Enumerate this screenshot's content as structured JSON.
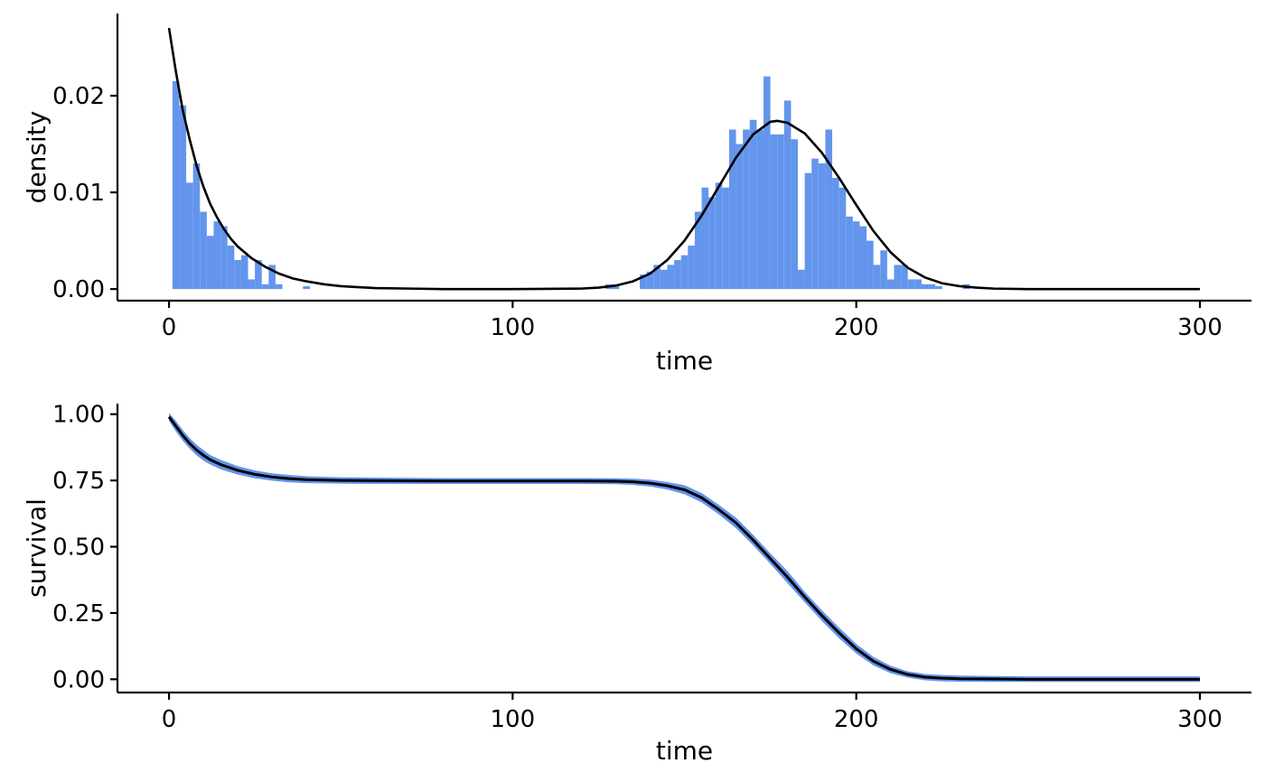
{
  "chart_data": [
    {
      "type": "histogram-with-density-line",
      "xlabel": "time",
      "ylabel": "density",
      "xlim": [
        -15,
        315
      ],
      "ylim": [
        -0.0012,
        0.0285
      ],
      "xticks": [
        0,
        100,
        200,
        300
      ],
      "xtick_labels": [
        "0",
        "100",
        "200",
        "300"
      ],
      "yticks": [
        0,
        0.01,
        0.02
      ],
      "ytick_labels": [
        "0.00",
        "0.01",
        "0.02"
      ],
      "bar_color": "#6495ED",
      "line_color": "#000000",
      "bin_width": 2,
      "bins_start": [
        1,
        3,
        5,
        7,
        9,
        11,
        13,
        15,
        17,
        19,
        21,
        23,
        25,
        27,
        29,
        31,
        33,
        39,
        127,
        129,
        137,
        139,
        141,
        143,
        145,
        147,
        149,
        151,
        153,
        155,
        157,
        159,
        161,
        163,
        165,
        167,
        169,
        171,
        173,
        175,
        177,
        179,
        181,
        183,
        185,
        187,
        189,
        191,
        193,
        195,
        197,
        199,
        201,
        203,
        205,
        207,
        209,
        211,
        213,
        215,
        217,
        219,
        221,
        223,
        231
      ],
      "densities": [
        0.0215,
        0.019,
        0.011,
        0.013,
        0.008,
        0.0055,
        0.007,
        0.0065,
        0.0045,
        0.003,
        0.0035,
        0.001,
        0.003,
        0.0005,
        0.0025,
        0.0005,
        0.0,
        0.0003,
        0.0005,
        0.0005,
        0.0015,
        0.0018,
        0.0025,
        0.002,
        0.0025,
        0.003,
        0.0035,
        0.0045,
        0.008,
        0.0105,
        0.0095,
        0.011,
        0.0105,
        0.0165,
        0.015,
        0.0165,
        0.0175,
        0.0165,
        0.022,
        0.016,
        0.016,
        0.0195,
        0.0155,
        0.002,
        0.012,
        0.0135,
        0.013,
        0.0165,
        0.0115,
        0.0105,
        0.0075,
        0.007,
        0.0065,
        0.005,
        0.0025,
        0.004,
        0.001,
        0.0025,
        0.0025,
        0.001,
        0.001,
        0.0005,
        0.0005,
        0.0003,
        0.0005
      ],
      "density_curve": {
        "x": [
          0,
          2,
          4,
          6,
          8,
          10,
          12,
          14,
          16,
          18,
          20,
          24,
          28,
          32,
          36,
          40,
          45,
          50,
          60,
          70,
          80,
          100,
          120,
          125,
          130,
          135,
          140,
          145,
          150,
          155,
          160,
          165,
          170,
          175,
          177,
          180,
          185,
          190,
          195,
          200,
          205,
          210,
          215,
          220,
          225,
          230,
          235,
          240,
          250,
          260,
          300
        ],
        "y": [
          0.027,
          0.0225,
          0.0185,
          0.0155,
          0.0128,
          0.0106,
          0.0088,
          0.0074,
          0.0062,
          0.0052,
          0.0044,
          0.0032,
          0.0023,
          0.0016,
          0.0011,
          0.0008,
          0.0005,
          0.0003,
          0.0001,
          5e-05,
          0.0,
          0.0,
          5e-05,
          0.00015,
          0.00035,
          0.0008,
          0.0016,
          0.003,
          0.005,
          0.0076,
          0.0106,
          0.0136,
          0.016,
          0.0173,
          0.0174,
          0.0172,
          0.0161,
          0.0141,
          0.0115,
          0.0087,
          0.006,
          0.0038,
          0.0022,
          0.0012,
          0.0006,
          0.0003,
          0.00015,
          5e-05,
          0.0,
          0.0,
          0.0
        ]
      }
    },
    {
      "type": "line-with-band",
      "xlabel": "time",
      "ylabel": "survival",
      "xlim": [
        -15,
        315
      ],
      "ylim": [
        -0.05,
        1.04
      ],
      "xticks": [
        0,
        100,
        200,
        300
      ],
      "xtick_labels": [
        "0",
        "100",
        "200",
        "300"
      ],
      "yticks": [
        0,
        0.25,
        0.5,
        0.75,
        1.0
      ],
      "ytick_labels": [
        "0.00",
        "0.25",
        "0.50",
        "0.75",
        "1.00"
      ],
      "band_color": "#6495ED",
      "line_color": "#000000",
      "x": [
        0,
        2,
        4,
        6,
        8,
        10,
        12,
        15,
        20,
        25,
        30,
        35,
        40,
        50,
        60,
        80,
        100,
        120,
        130,
        135,
        140,
        145,
        150,
        155,
        160,
        165,
        170,
        175,
        180,
        185,
        190,
        195,
        200,
        205,
        210,
        215,
        220,
        225,
        230,
        240,
        250,
        300
      ],
      "y": [
        0.99,
        0.955,
        0.92,
        0.89,
        0.865,
        0.845,
        0.828,
        0.81,
        0.788,
        0.773,
        0.763,
        0.757,
        0.753,
        0.75,
        0.749,
        0.748,
        0.748,
        0.748,
        0.747,
        0.745,
        0.74,
        0.73,
        0.715,
        0.685,
        0.64,
        0.59,
        0.525,
        0.455,
        0.385,
        0.31,
        0.24,
        0.175,
        0.115,
        0.068,
        0.037,
        0.018,
        0.008,
        0.004,
        0.002,
        0.001,
        0.0,
        0.0
      ],
      "lower": [
        0.975,
        0.935,
        0.9,
        0.87,
        0.845,
        0.825,
        0.81,
        0.792,
        0.772,
        0.758,
        0.749,
        0.743,
        0.74,
        0.738,
        0.737,
        0.737,
        0.737,
        0.737,
        0.736,
        0.733,
        0.727,
        0.716,
        0.698,
        0.667,
        0.622,
        0.57,
        0.505,
        0.435,
        0.362,
        0.29,
        0.22,
        0.155,
        0.097,
        0.052,
        0.023,
        0.006,
        -0.004,
        -0.008,
        -0.009,
        -0.01,
        -0.01,
        -0.01
      ],
      "upper": [
        1.005,
        0.975,
        0.94,
        0.91,
        0.885,
        0.865,
        0.846,
        0.828,
        0.804,
        0.788,
        0.777,
        0.771,
        0.766,
        0.762,
        0.761,
        0.759,
        0.759,
        0.759,
        0.758,
        0.757,
        0.753,
        0.744,
        0.732,
        0.703,
        0.658,
        0.61,
        0.545,
        0.475,
        0.408,
        0.33,
        0.26,
        0.195,
        0.133,
        0.084,
        0.051,
        0.03,
        0.02,
        0.016,
        0.014,
        0.012,
        0.011,
        0.011
      ]
    }
  ]
}
